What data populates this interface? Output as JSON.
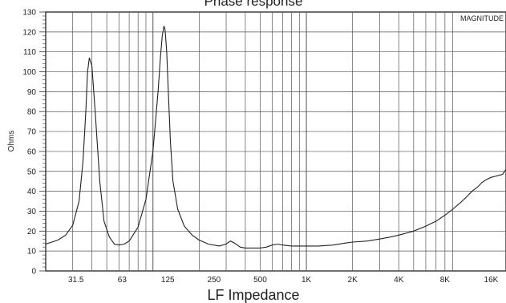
{
  "chart_data": {
    "type": "line",
    "title": "Phase response",
    "subtitle": "LF Impedance",
    "ylabel": "Ohms",
    "corner_label": "MAGNITUDE",
    "x_scale": "log",
    "xlim": [
      20,
      20000
    ],
    "ylim": [
      0,
      130
    ],
    "grid": true,
    "y_ticks": [
      0,
      10,
      20,
      30,
      40,
      50,
      60,
      70,
      80,
      90,
      100,
      110,
      120,
      130
    ],
    "x_ticks": [
      {
        "label": "31.5",
        "value": 31.5
      },
      {
        "label": "63",
        "value": 63
      },
      {
        "label": "125",
        "value": 125
      },
      {
        "label": "250",
        "value": 250
      },
      {
        "label": "500",
        "value": 500
      },
      {
        "label": "1K",
        "value": 1000
      },
      {
        "label": "2K",
        "value": 2000
      },
      {
        "label": "4K",
        "value": 4000
      },
      {
        "label": "8K",
        "value": 8000
      },
      {
        "label": "16K",
        "value": 16000
      }
    ],
    "series": [
      {
        "color": "#222222",
        "x": [
          20,
          24,
          27,
          30,
          33,
          35,
          36.5,
          37.5,
          38.5,
          40,
          42,
          45,
          48,
          52,
          56,
          60,
          65,
          70,
          80,
          90,
          100,
          108,
          112,
          115,
          118,
          120,
          123,
          126,
          130,
          135,
          145,
          160,
          180,
          200,
          230,
          270,
          300,
          320,
          340,
          370,
          400,
          450,
          500,
          550,
          600,
          650,
          700,
          800,
          900,
          1000,
          1200,
          1500,
          1800,
          2000,
          2500,
          3000,
          3500,
          4000,
          5000,
          6000,
          7000,
          8000,
          9000,
          10000,
          11000,
          12000,
          13000,
          14000,
          15000,
          16000,
          17000,
          18000,
          19000,
          20000
        ],
        "y": [
          13.5,
          15.5,
          18,
          23,
          35,
          55,
          80,
          100,
          107,
          103,
          80,
          45,
          25,
          17,
          13.5,
          13,
          13.5,
          15,
          22,
          36,
          60,
          90,
          108,
          118,
          123,
          121,
          110,
          90,
          65,
          45,
          31,
          22.5,
          18,
          15.5,
          13.5,
          12.5,
          13.5,
          15,
          14,
          12,
          11.5,
          11.5,
          11.5,
          12,
          13,
          13.5,
          13,
          12.5,
          12.5,
          12.5,
          12.5,
          13,
          14,
          14.5,
          15,
          16,
          17,
          18,
          20,
          22.5,
          25,
          28,
          31,
          34,
          37,
          40,
          42,
          44.5,
          46,
          47,
          47.5,
          48,
          48.5,
          51
        ]
      }
    ]
  }
}
